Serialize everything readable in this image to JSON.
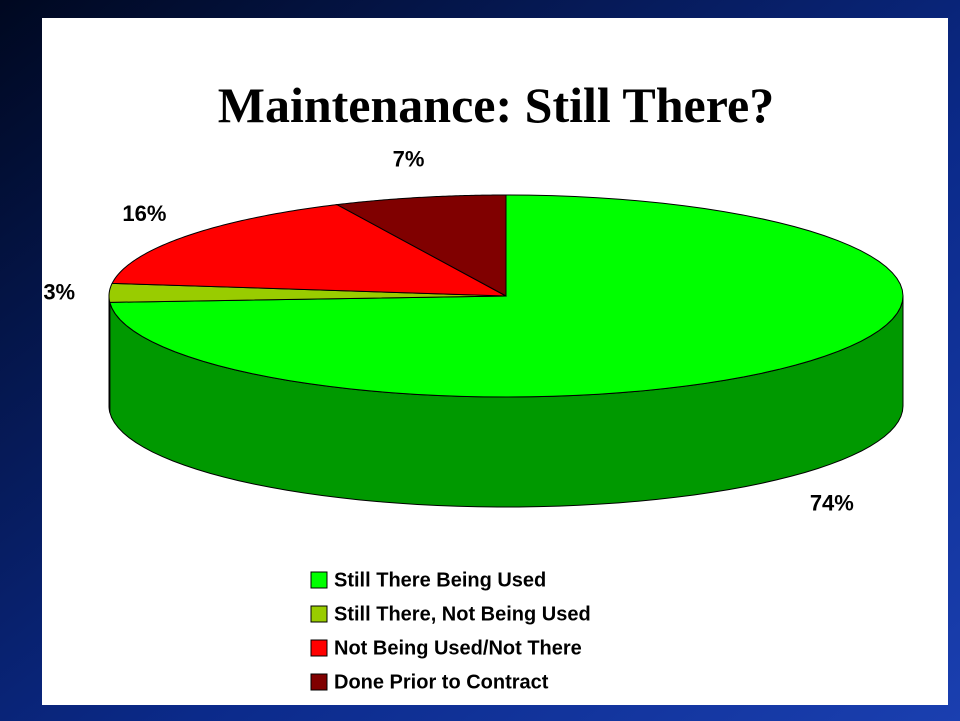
{
  "chart_data": {
    "type": "pie3d",
    "title": "Maintenance: Still There?",
    "categories": [
      "Still There Being Used",
      "Still There, Not Being Used",
      "Not Being Used/Not There",
      "Done Prior to Contract"
    ],
    "values": [
      74,
      3,
      16,
      7
    ],
    "value_labels": [
      "74%",
      "3%",
      "16%",
      "7%"
    ],
    "colors": [
      "#00ff00",
      "#99cc00",
      "#ff0000",
      "#800000"
    ],
    "legend": "bottom"
  }
}
